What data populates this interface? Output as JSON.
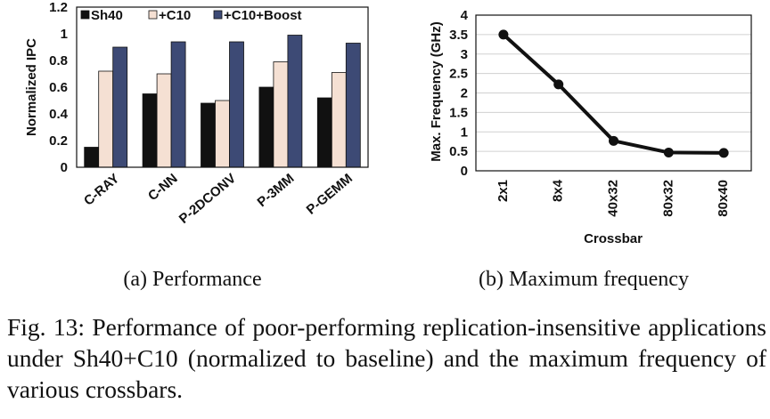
{
  "chart_data": [
    {
      "type": "bar",
      "categories": [
        "C-RAY",
        "C-NN",
        "P-2DCONV",
        "P-3MM",
        "P-GEMM"
      ],
      "series": [
        {
          "name": "Sh40",
          "values": [
            0.15,
            0.55,
            0.48,
            0.6,
            0.52
          ],
          "color": "#111111"
        },
        {
          "name": "+C10",
          "values": [
            0.72,
            0.7,
            0.5,
            0.79,
            0.71
          ],
          "color": "#f5e0d3"
        },
        {
          "name": "+C10+Boost",
          "values": [
            0.9,
            0.94,
            0.94,
            0.99,
            0.93
          ],
          "color": "#3d4a75"
        }
      ],
      "ylabel": "Normalized IPC",
      "ylim": [
        0,
        1.2
      ],
      "yticks": [
        "0",
        "0.2",
        "0.4",
        "0.6",
        "0.8",
        "1",
        "1.2"
      ],
      "legend_position": "top",
      "grid": false
    },
    {
      "type": "line",
      "categories": [
        "2x1",
        "8x4",
        "40x32",
        "80x32",
        "80x40"
      ],
      "series": [
        {
          "values": [
            3.5,
            2.22,
            0.77,
            0.47,
            0.46
          ],
          "color": "#111111"
        }
      ],
      "xlabel": "Crossbar",
      "ylabel": "Max. Frequency (GHz)",
      "ylim": [
        0,
        4
      ],
      "yticks": [
        "0",
        "0.5",
        "1",
        "1.5",
        "2",
        "2.5",
        "3",
        "3.5",
        "4"
      ],
      "grid": true
    }
  ],
  "subcaptions": {
    "a": "(a) Performance",
    "b": "(b) Maximum frequency"
  },
  "caption": "Fig. 13: Performance of poor-performing replication-insensitive applications under Sh40+C10 (normalized to baseline) and the maximum frequency of various crossbars."
}
